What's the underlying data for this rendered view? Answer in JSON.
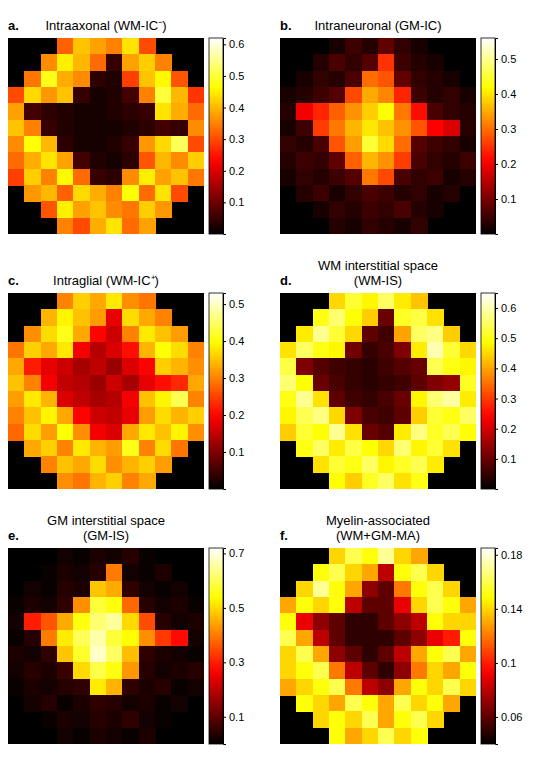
{
  "chart_data": [
    {
      "type": "heatmap",
      "panel": "a.",
      "title": "Intraaxonal (WM-IC⁻)",
      "color": "hot",
      "tick_labels": false,
      "color_range": [
        0,
        0.62
      ],
      "color_ticks": [
        0.1,
        0.2,
        0.3,
        0.4,
        0.5,
        0.6
      ],
      "cells": [
        [
          null,
          null,
          null,
          0.32,
          0.41,
          0.38,
          0.35,
          0.44,
          0.3,
          null,
          null,
          null
        ],
        [
          null,
          null,
          0.36,
          0.45,
          0.4,
          0.33,
          0.05,
          0.38,
          0.42,
          0.35,
          null,
          null
        ],
        [
          null,
          0.34,
          0.48,
          0.39,
          0.36,
          0.04,
          0.03,
          0.29,
          0.41,
          0.46,
          0.31,
          null
        ],
        [
          0.3,
          0.43,
          0.37,
          0.41,
          0.05,
          0.02,
          0.03,
          0.06,
          0.35,
          0.5,
          0.4,
          0.28
        ],
        [
          0.38,
          0.06,
          0.04,
          0.03,
          0.02,
          0.02,
          0.03,
          0.04,
          0.05,
          0.44,
          0.39,
          0.33
        ],
        [
          0.41,
          0.35,
          0.05,
          0.03,
          0.02,
          0.02,
          0.02,
          0.03,
          0.04,
          0.06,
          0.05,
          0.36
        ],
        [
          0.36,
          0.47,
          0.4,
          0.04,
          0.02,
          0.02,
          0.03,
          0.05,
          0.37,
          0.43,
          0.52,
          0.3
        ],
        [
          0.33,
          0.39,
          0.44,
          0.38,
          0.06,
          0.03,
          0.02,
          0.04,
          0.31,
          0.4,
          0.36,
          0.42
        ],
        [
          0.29,
          0.42,
          0.35,
          0.46,
          0.33,
          0.05,
          0.04,
          0.36,
          0.45,
          0.38,
          0.41,
          0.34
        ],
        [
          null,
          0.37,
          0.4,
          0.32,
          0.43,
          0.39,
          0.35,
          0.47,
          0.33,
          0.44,
          0.3,
          null
        ],
        [
          null,
          null,
          0.31,
          0.45,
          0.38,
          0.41,
          0.36,
          0.34,
          0.42,
          0.37,
          null,
          null
        ],
        [
          null,
          null,
          null,
          0.35,
          0.3,
          0.39,
          0.44,
          0.33,
          0.38,
          null,
          null,
          null
        ]
      ]
    },
    {
      "type": "heatmap",
      "panel": "b.",
      "title": "Intraneuronal (GM-IC)",
      "color": "hot",
      "tick_labels": false,
      "color_range": [
        0,
        0.56
      ],
      "color_ticks": [
        0.1,
        0.2,
        0.3,
        0.4,
        0.5
      ],
      "cells": [
        [
          null,
          null,
          null,
          0.02,
          0.05,
          0.03,
          0.08,
          0.04,
          0.02,
          null,
          null,
          null
        ],
        [
          null,
          null,
          0.03,
          0.06,
          0.04,
          0.07,
          0.25,
          0.05,
          0.03,
          0.02,
          null,
          null
        ],
        [
          null,
          0.02,
          0.04,
          0.03,
          0.06,
          0.3,
          0.28,
          0.08,
          0.04,
          0.03,
          0.02,
          null
        ],
        [
          0.02,
          0.03,
          0.05,
          0.07,
          0.27,
          0.35,
          0.32,
          0.24,
          0.05,
          0.03,
          0.04,
          0.02
        ],
        [
          0.03,
          0.2,
          0.24,
          0.29,
          0.33,
          0.38,
          0.42,
          0.31,
          0.22,
          0.06,
          0.04,
          0.03
        ],
        [
          0.02,
          0.05,
          0.26,
          0.31,
          0.36,
          0.4,
          0.37,
          0.33,
          0.28,
          0.21,
          0.18,
          0.03
        ],
        [
          0.04,
          0.03,
          0.06,
          0.28,
          0.34,
          0.45,
          0.39,
          0.3,
          0.07,
          0.05,
          0.04,
          0.02
        ],
        [
          0.03,
          0.05,
          0.04,
          0.08,
          0.29,
          0.36,
          0.33,
          0.26,
          0.06,
          0.04,
          0.03,
          0.05
        ],
        [
          0.02,
          0.04,
          0.03,
          0.05,
          0.07,
          0.31,
          0.27,
          0.06,
          0.04,
          0.05,
          0.02,
          0.03
        ],
        [
          null,
          0.03,
          0.05,
          0.02,
          0.04,
          0.06,
          0.05,
          0.03,
          0.04,
          0.02,
          0.03,
          null
        ],
        [
          null,
          null,
          0.02,
          0.04,
          0.03,
          0.05,
          0.04,
          0.06,
          0.03,
          0.02,
          null,
          null
        ],
        [
          null,
          null,
          null,
          0.03,
          0.02,
          0.04,
          0.03,
          0.02,
          0.04,
          null,
          null,
          null
        ]
      ]
    },
    {
      "type": "heatmap",
      "panel": "c.",
      "title": "Intraglial (WM-IC⁺)",
      "color": "hot",
      "tick_labels": false,
      "color_range": [
        0,
        0.53
      ],
      "color_ticks": [
        0.1,
        0.2,
        0.3,
        0.4,
        0.5
      ],
      "cells": [
        [
          null,
          null,
          null,
          0.3,
          0.36,
          0.33,
          0.38,
          0.31,
          0.29,
          null,
          null,
          null
        ],
        [
          null,
          null,
          0.34,
          0.39,
          0.35,
          0.32,
          0.18,
          0.37,
          0.33,
          0.3,
          null,
          null
        ],
        [
          null,
          0.31,
          0.37,
          0.41,
          0.33,
          0.2,
          0.16,
          0.3,
          0.38,
          0.35,
          0.32,
          null
        ],
        [
          0.29,
          0.36,
          0.33,
          0.38,
          0.19,
          0.14,
          0.17,
          0.21,
          0.34,
          0.4,
          0.37,
          0.3
        ],
        [
          0.33,
          0.22,
          0.18,
          0.16,
          0.13,
          0.15,
          0.12,
          0.17,
          0.2,
          0.36,
          0.34,
          0.31
        ],
        [
          0.35,
          0.3,
          0.19,
          0.15,
          0.14,
          0.12,
          0.16,
          0.13,
          0.18,
          0.21,
          0.23,
          0.33
        ],
        [
          0.32,
          0.38,
          0.34,
          0.17,
          0.15,
          0.13,
          0.14,
          0.19,
          0.35,
          0.39,
          0.44,
          0.3
        ],
        [
          0.3,
          0.35,
          0.39,
          0.33,
          0.2,
          0.16,
          0.15,
          0.18,
          0.32,
          0.37,
          0.34,
          0.36
        ],
        [
          0.28,
          0.37,
          0.32,
          0.4,
          0.31,
          0.19,
          0.17,
          0.33,
          0.38,
          0.35,
          0.39,
          0.31
        ],
        [
          null,
          0.33,
          0.36,
          0.3,
          0.38,
          0.34,
          0.32,
          0.41,
          0.3,
          0.37,
          0.29,
          null
        ],
        [
          null,
          null,
          0.3,
          0.35,
          0.33,
          0.37,
          0.31,
          0.34,
          0.36,
          0.32,
          null,
          null
        ],
        [
          null,
          null,
          null,
          0.31,
          0.29,
          0.34,
          0.36,
          0.3,
          0.33,
          null,
          null,
          null
        ]
      ]
    },
    {
      "type": "heatmap",
      "panel": "d.",
      "title": "WM interstitial space (WM-IS)",
      "color": "hot",
      "tick_labels": false,
      "color_range": [
        0,
        0.65
      ],
      "color_ticks": [
        0.1,
        0.2,
        0.3,
        0.4,
        0.5,
        0.6
      ],
      "cells": [
        [
          null,
          null,
          null,
          0.45,
          0.52,
          0.48,
          0.55,
          0.47,
          0.43,
          null,
          null,
          null
        ],
        [
          null,
          null,
          0.5,
          0.56,
          0.49,
          0.44,
          0.1,
          0.51,
          0.53,
          0.46,
          null,
          null
        ],
        [
          null,
          0.47,
          0.58,
          0.52,
          0.45,
          0.09,
          0.06,
          0.4,
          0.55,
          0.57,
          0.44,
          null
        ],
        [
          0.46,
          0.55,
          0.5,
          0.48,
          0.11,
          0.05,
          0.07,
          0.12,
          0.47,
          0.6,
          0.52,
          0.45
        ],
        [
          0.53,
          0.12,
          0.08,
          0.06,
          0.05,
          0.04,
          0.06,
          0.08,
          0.1,
          0.54,
          0.5,
          0.48
        ],
        [
          0.56,
          0.49,
          0.1,
          0.07,
          0.05,
          0.04,
          0.05,
          0.06,
          0.09,
          0.12,
          0.14,
          0.51
        ],
        [
          0.5,
          0.58,
          0.46,
          0.09,
          0.06,
          0.05,
          0.07,
          0.1,
          0.48,
          0.56,
          0.59,
          0.47
        ],
        [
          0.48,
          0.54,
          0.57,
          0.45,
          0.12,
          0.07,
          0.06,
          0.09,
          0.44,
          0.52,
          0.5,
          0.55
        ],
        [
          0.44,
          0.52,
          0.49,
          0.58,
          0.46,
          0.1,
          0.08,
          0.47,
          0.57,
          0.51,
          0.54,
          0.49
        ],
        [
          null,
          0.5,
          0.55,
          0.47,
          0.53,
          0.49,
          0.45,
          0.56,
          0.48,
          0.52,
          0.46,
          null
        ],
        [
          null,
          null,
          0.46,
          0.52,
          0.5,
          0.55,
          0.48,
          0.51,
          0.54,
          0.47,
          null,
          null
        ],
        [
          null,
          null,
          null,
          0.49,
          0.44,
          0.51,
          0.55,
          0.46,
          0.5,
          null,
          null,
          null
        ]
      ]
    },
    {
      "type": "heatmap",
      "panel": "e.",
      "title": "GM interstitial space (GM-IS)",
      "color": "hot",
      "tick_labels": false,
      "color_range": [
        0,
        0.72
      ],
      "color_ticks": [
        0.1,
        0.3,
        0.5,
        0.7
      ],
      "cells": [
        [
          null,
          null,
          null,
          0.02,
          0.01,
          0.03,
          0.02,
          0.04,
          0.01,
          null,
          null,
          null
        ],
        [
          null,
          null,
          0.01,
          0.03,
          0.02,
          0.04,
          0.4,
          0.02,
          0.01,
          0.03,
          null,
          null
        ],
        [
          null,
          0.02,
          0.01,
          0.04,
          0.03,
          0.48,
          0.45,
          0.05,
          0.02,
          0.01,
          0.02,
          null
        ],
        [
          0.01,
          0.03,
          0.02,
          0.05,
          0.42,
          0.58,
          0.55,
          0.38,
          0.04,
          0.02,
          0.03,
          0.01
        ],
        [
          0.02,
          0.3,
          0.36,
          0.45,
          0.55,
          0.62,
          0.65,
          0.5,
          0.35,
          0.04,
          0.02,
          0.03
        ],
        [
          0.01,
          0.04,
          0.4,
          0.52,
          0.6,
          0.66,
          0.58,
          0.54,
          0.42,
          0.33,
          0.28,
          0.02
        ],
        [
          0.03,
          0.02,
          0.05,
          0.48,
          0.57,
          0.68,
          0.61,
          0.47,
          0.05,
          0.03,
          0.02,
          0.01
        ],
        [
          0.02,
          0.04,
          0.03,
          0.06,
          0.5,
          0.59,
          0.55,
          0.43,
          0.04,
          0.02,
          0.03,
          0.04
        ],
        [
          0.01,
          0.03,
          0.02,
          0.04,
          0.05,
          0.52,
          0.46,
          0.05,
          0.03,
          0.04,
          0.01,
          0.02
        ],
        [
          null,
          0.02,
          0.04,
          0.01,
          0.03,
          0.05,
          0.04,
          0.02,
          0.03,
          0.01,
          0.02,
          null
        ],
        [
          null,
          null,
          0.01,
          0.03,
          0.02,
          0.04,
          0.03,
          0.05,
          0.02,
          0.01,
          null,
          null
        ],
        [
          null,
          null,
          null,
          0.02,
          0.01,
          0.03,
          0.02,
          0.01,
          0.03,
          null,
          null,
          null
        ]
      ]
    },
    {
      "type": "heatmap",
      "panel": "f.",
      "title": "Myelin-associated (WM+GM-MA)",
      "color": "hot",
      "tick_labels": false,
      "color_range": [
        0.04,
        0.185
      ],
      "color_ticks": [
        0.06,
        0.1,
        0.14,
        0.18
      ],
      "cells": [
        [
          null,
          null,
          null,
          0.14,
          0.16,
          0.15,
          0.17,
          0.14,
          0.13,
          null,
          null,
          null
        ],
        [
          null,
          null,
          0.15,
          0.16,
          0.14,
          0.13,
          0.08,
          0.15,
          0.16,
          0.14,
          null,
          null
        ],
        [
          null,
          0.14,
          0.17,
          0.15,
          0.13,
          0.07,
          0.06,
          0.12,
          0.15,
          0.16,
          0.14,
          null
        ],
        [
          0.13,
          0.15,
          0.14,
          0.15,
          0.08,
          0.06,
          0.06,
          0.09,
          0.14,
          0.16,
          0.15,
          0.13
        ],
        [
          0.15,
          0.09,
          0.07,
          0.06,
          0.05,
          0.05,
          0.06,
          0.07,
          0.08,
          0.15,
          0.14,
          0.14
        ],
        [
          0.16,
          0.13,
          0.08,
          0.06,
          0.05,
          0.05,
          0.05,
          0.06,
          0.07,
          0.09,
          0.1,
          0.15
        ],
        [
          0.14,
          0.16,
          0.13,
          0.07,
          0.06,
          0.05,
          0.06,
          0.08,
          0.13,
          0.15,
          0.16,
          0.13
        ],
        [
          0.14,
          0.15,
          0.16,
          0.12,
          0.08,
          0.06,
          0.05,
          0.07,
          0.12,
          0.14,
          0.13,
          0.15
        ],
        [
          0.13,
          0.14,
          0.15,
          0.16,
          0.12,
          0.08,
          0.07,
          0.13,
          0.15,
          0.14,
          0.16,
          0.14
        ],
        [
          null,
          0.15,
          0.14,
          0.13,
          0.16,
          0.15,
          0.13,
          0.16,
          0.14,
          0.15,
          0.13,
          null
        ],
        [
          null,
          null,
          0.14,
          0.15,
          0.14,
          0.16,
          0.13,
          0.15,
          0.16,
          0.14,
          null,
          null
        ],
        [
          null,
          null,
          null,
          0.15,
          0.13,
          0.14,
          0.16,
          0.14,
          0.15,
          null,
          null,
          null
        ]
      ]
    }
  ]
}
